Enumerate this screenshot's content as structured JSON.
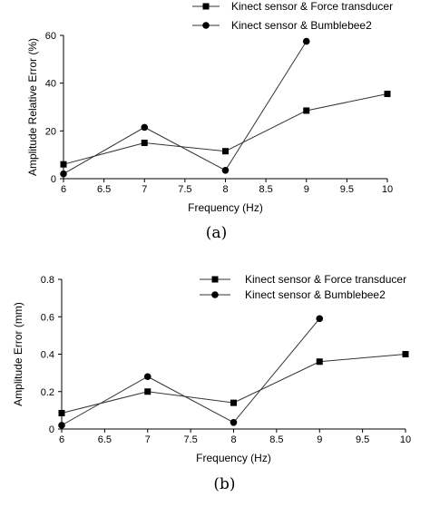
{
  "chart_data": [
    {
      "type": "line",
      "panel_label": "(a)",
      "xlabel": "Frequency (Hz)",
      "ylabel": "Amplitude Relative Error (%)",
      "xlim": [
        6,
        10
      ],
      "ylim": [
        0,
        60
      ],
      "xticks": [
        "6",
        "6.5",
        "7",
        "7.5",
        "8",
        "8.5",
        "9",
        "9.5",
        "10"
      ],
      "yticks": [
        "0",
        "20",
        "40",
        "60"
      ],
      "legend_position": "top-right, above plot",
      "series": [
        {
          "name": "Kinect sensor & Force transducer",
          "marker": "square",
          "x": [
            6,
            7,
            8,
            9,
            10
          ],
          "y": [
            6,
            15,
            11.5,
            28.5,
            35.5
          ]
        },
        {
          "name": "Kinect sensor & Bumblebee2",
          "marker": "circle",
          "x": [
            6,
            7,
            8,
            9
          ],
          "y": [
            2,
            21.5,
            3.5,
            57.5
          ]
        }
      ]
    },
    {
      "type": "line",
      "panel_label": "(b)",
      "xlabel": "Frequency (Hz)",
      "ylabel": "Amplitude Error (mm)",
      "xlim": [
        6,
        10
      ],
      "ylim": [
        0,
        0.8
      ],
      "xticks": [
        "6",
        "6.5",
        "7",
        "7.5",
        "8",
        "8.5",
        "9",
        "9.5",
        "10"
      ],
      "yticks": [
        "0",
        "0.2",
        "0.4",
        "0.6",
        "0.8"
      ],
      "legend_position": "top-right, inside plot",
      "series": [
        {
          "name": "Kinect sensor & Force transducer",
          "marker": "square",
          "x": [
            6,
            7,
            8,
            9,
            10
          ],
          "y": [
            0.085,
            0.2,
            0.14,
            0.36,
            0.4
          ]
        },
        {
          "name": "Kinect sensor & Bumblebee2",
          "marker": "circle",
          "x": [
            6,
            7,
            8,
            9
          ],
          "y": [
            0.02,
            0.28,
            0.035,
            0.59
          ]
        }
      ]
    }
  ]
}
